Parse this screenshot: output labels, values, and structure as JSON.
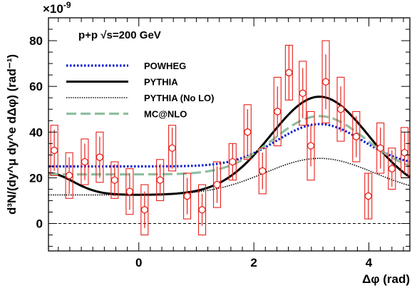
{
  "chart_data": {
    "type": "scatter",
    "title": "",
    "annotation": "p+p √s=200 GeV",
    "scale_label": "×10",
    "scale_exponent": "-9",
    "xlabel": "Δφ (rad)",
    "ylabel": "d³N/(dy^μ dy^e dΔφ) (rad⁻¹)",
    "xlim": [
      -1.571,
      4.712
    ],
    "ylim": [
      -12,
      90
    ],
    "x_ticks": [
      0,
      2,
      4
    ],
    "y_ticks": [
      0,
      20,
      40,
      60,
      80
    ],
    "grid": false,
    "legend_position": "upper-left",
    "zero_line": true,
    "data": {
      "name": "data",
      "color": "#e8201a",
      "points": [
        {
          "x": -1.47,
          "y": 32,
          "err": 9,
          "sys": 11
        },
        {
          "x": -1.21,
          "y": 21,
          "err": 8,
          "sys": 10
        },
        {
          "x": -0.94,
          "y": 27,
          "err": 8,
          "sys": 10
        },
        {
          "x": -0.68,
          "y": 29,
          "err": 9,
          "sys": 11
        },
        {
          "x": -0.42,
          "y": 19,
          "err": 7,
          "sys": 8
        },
        {
          "x": -0.16,
          "y": 14,
          "err": 8,
          "sys": 10
        },
        {
          "x": 0.1,
          "y": 6,
          "err": 8,
          "sys": 11
        },
        {
          "x": 0.37,
          "y": 19,
          "err": 7,
          "sys": 9
        },
        {
          "x": 0.58,
          "y": 33,
          "err": 9,
          "sys": 10
        },
        {
          "x": 0.84,
          "y": 12,
          "err": 8,
          "sys": 10
        },
        {
          "x": 1.1,
          "y": 6,
          "err": 7,
          "sys": 11
        },
        {
          "x": 1.36,
          "y": 17,
          "err": 8,
          "sys": 10
        },
        {
          "x": 1.63,
          "y": 27,
          "err": 8,
          "sys": 8
        },
        {
          "x": 1.89,
          "y": 40,
          "err": 10,
          "sys": 12
        },
        {
          "x": 2.15,
          "y": 23,
          "err": 8,
          "sys": 10
        },
        {
          "x": 2.41,
          "y": 49,
          "err": 11,
          "sys": 15
        },
        {
          "x": 2.61,
          "y": 66,
          "err": 12,
          "sys": 12
        },
        {
          "x": 2.85,
          "y": 57,
          "err": 11,
          "sys": 14
        },
        {
          "x": 2.99,
          "y": 34,
          "err": 9,
          "sys": 15
        },
        {
          "x": 3.25,
          "y": 62,
          "err": 12,
          "sys": 18
        },
        {
          "x": 3.51,
          "y": 50,
          "err": 10,
          "sys": 14
        },
        {
          "x": 3.78,
          "y": 38,
          "err": 9,
          "sys": 11
        },
        {
          "x": 3.99,
          "y": 12,
          "err": 10,
          "sys": 10
        },
        {
          "x": 4.2,
          "y": 33,
          "err": 9,
          "sys": 11
        },
        {
          "x": 4.4,
          "y": 24,
          "err": 8,
          "sys": 9
        },
        {
          "x": 4.62,
          "y": 31,
          "err": 9,
          "sys": 11
        }
      ]
    },
    "series": [
      {
        "name": "POWHEG",
        "color": "#0a1fd1",
        "style": "dotted-thick",
        "base": 25,
        "amp": 18.5,
        "width": 0.75
      },
      {
        "name": "PYTHIA",
        "color": "#000000",
        "style": "solid",
        "base": 12.5,
        "amp": 43,
        "width": 0.85,
        "tail": 1.5
      },
      {
        "name": "PYTHIA (No LO)",
        "color": "#000000",
        "style": "dotted-thin",
        "base": 12.5,
        "amp": 16,
        "width": 0.95
      },
      {
        "name": "MC@NLO",
        "color": "#8fbf9f",
        "style": "dashed",
        "base": 21.5,
        "amp": 25.5,
        "width": 0.8
      }
    ]
  }
}
